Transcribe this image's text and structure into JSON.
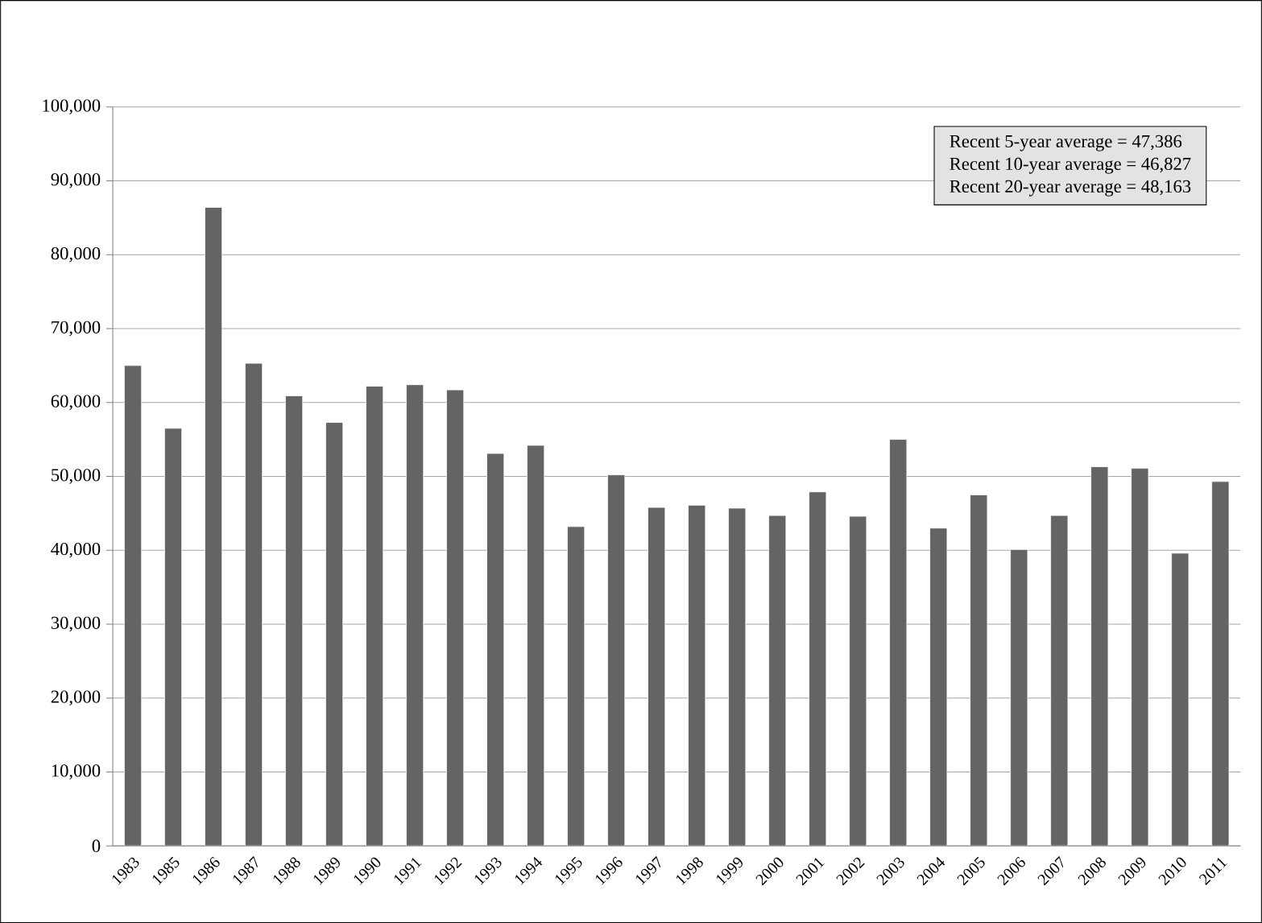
{
  "chart_data": {
    "type": "bar",
    "categories": [
      "1983",
      "1985",
      "1986",
      "1987",
      "1988",
      "1989",
      "1990",
      "1991",
      "1992",
      "1993",
      "1994",
      "1995",
      "1996",
      "1997",
      "1998",
      "1999",
      "2000",
      "2001",
      "2002",
      "2003",
      "2004",
      "2005",
      "2006",
      "2007",
      "2008",
      "2009",
      "2010",
      "2011"
    ],
    "values": [
      65000,
      56500,
      86400,
      65300,
      60900,
      57300,
      62200,
      62400,
      61700,
      53100,
      54200,
      43200,
      50200,
      45800,
      46100,
      45700,
      44700,
      47900,
      44600,
      55000,
      43000,
      47500,
      40100,
      44700,
      51300,
      51100,
      39600,
      49300
    ],
    "color": "#646464",
    "ylim": [
      0,
      100000
    ],
    "yticks": [
      {
        "value": 0,
        "label": "0"
      },
      {
        "value": 10000,
        "label": "10,000"
      },
      {
        "value": 20000,
        "label": "20,000"
      },
      {
        "value": 30000,
        "label": "30,000"
      },
      {
        "value": 40000,
        "label": "40,000"
      },
      {
        "value": 50000,
        "label": "50,000"
      },
      {
        "value": 60000,
        "label": "60,000"
      },
      {
        "value": 70000,
        "label": "70,000"
      },
      {
        "value": 80000,
        "label": "80,000"
      },
      {
        "value": 90000,
        "label": "90,000"
      },
      {
        "value": 100000,
        "label": "100,000"
      }
    ],
    "grid": "y",
    "annotations": [
      "Recent 5-year average = 47,386",
      "Recent 10-year average = 46,827",
      "Recent 20-year average = 48,163"
    ]
  }
}
